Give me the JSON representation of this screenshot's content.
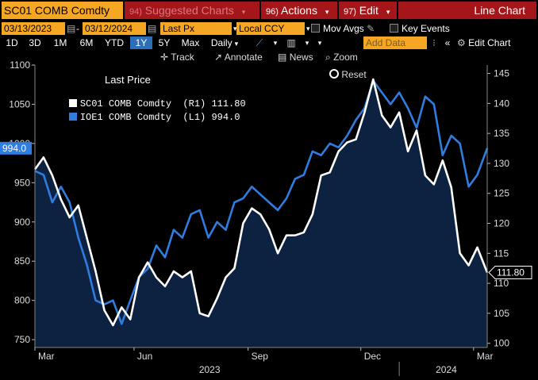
{
  "toolbar": {
    "ticker": "SC01 COMB Comdty",
    "suggested_num": "94)",
    "suggested_label": "Suggested Charts",
    "actions_num": "96)",
    "actions_label": "Actions",
    "edit_num": "97)",
    "edit_label": "Edit",
    "chart_type": "Line Chart",
    "start_date": "03/13/2023",
    "end_date": "03/12/2024",
    "price_field": "Last Px",
    "currency": "Local CCY",
    "mov_avgs": "Mov Avgs",
    "key_events": "Key Events",
    "add_data": "Add Data",
    "edit_chart": "Edit Chart",
    "timeframes": [
      "1D",
      "3D",
      "1M",
      "6M",
      "YTD",
      "1Y",
      "5Y",
      "Max"
    ],
    "selected_timeframe": "1Y",
    "frequency": "Daily",
    "track": "Track",
    "annotate": "Annotate",
    "news": "News",
    "zoom": "Zoom",
    "reset": "Reset"
  },
  "legend": {
    "title": "Last Price",
    "series": [
      {
        "text": "SC01 COMB Comdty  (R1) 111.80",
        "color": "#ffffff"
      },
      {
        "text": "IOE1 COMB Comdty  (L1) 994.0",
        "color": "#2f7de1"
      }
    ]
  },
  "chart_data": {
    "type": "line",
    "title": "",
    "y_left": {
      "range": [
        740,
        1100
      ],
      "ticks": [
        750,
        800,
        850,
        900,
        950,
        1000,
        1050,
        1100
      ],
      "current_label": "994.0"
    },
    "y_right": {
      "range": [
        99.3,
        146.4
      ],
      "ticks": [
        100,
        105,
        110,
        115,
        120,
        125,
        130,
        135,
        140,
        145
      ],
      "current_label": "111.80"
    },
    "x_range": [
      "2023-03-13",
      "2024-03-12"
    ],
    "x_ticks": [
      {
        "label": "Mar",
        "date": "2023-03-13"
      },
      {
        "label": "Jun",
        "date": "2023-06-01"
      },
      {
        "label": "Sep",
        "date": "2023-09-01"
      },
      {
        "label": "Dec",
        "date": "2023-12-01"
      },
      {
        "label": "Mar",
        "date": "2024-03-01"
      }
    ],
    "year_labels": [
      {
        "label": "2023",
        "date": "2023-08-01"
      },
      {
        "label": "2024",
        "date": "2024-02-08"
      }
    ],
    "year_divider": "2024-01-01",
    "series": [
      {
        "name": "SC01 COMB Comdty",
        "axis": "right",
        "color": "#ffffff",
        "points": [
          [
            "2023-03-13",
            129.0
          ],
          [
            "2023-03-20",
            131.0
          ],
          [
            "2023-03-27",
            128.0
          ],
          [
            "2023-04-03",
            124.0
          ],
          [
            "2023-04-10",
            121.0
          ],
          [
            "2023-04-17",
            123.0
          ],
          [
            "2023-04-24",
            117.5
          ],
          [
            "2023-05-01",
            112.0
          ],
          [
            "2023-05-08",
            105.5
          ],
          [
            "2023-05-15",
            103.0
          ],
          [
            "2023-05-22",
            106.0
          ],
          [
            "2023-05-29",
            104.0
          ],
          [
            "2023-06-05",
            111.0
          ],
          [
            "2023-06-12",
            113.5
          ],
          [
            "2023-06-19",
            111.0
          ],
          [
            "2023-06-26",
            109.5
          ],
          [
            "2023-07-03",
            112.0
          ],
          [
            "2023-07-10",
            111.0
          ],
          [
            "2023-07-17",
            112.0
          ],
          [
            "2023-07-24",
            105.0
          ],
          [
            "2023-07-31",
            104.5
          ],
          [
            "2023-08-07",
            107.5
          ],
          [
            "2023-08-14",
            111.0
          ],
          [
            "2023-08-21",
            112.5
          ],
          [
            "2023-08-28",
            120.0
          ],
          [
            "2023-09-04",
            122.5
          ],
          [
            "2023-09-11",
            121.5
          ],
          [
            "2023-09-18",
            119.0
          ],
          [
            "2023-09-25",
            115.0
          ],
          [
            "2023-10-02",
            118.0
          ],
          [
            "2023-10-09",
            118.0
          ],
          [
            "2023-10-16",
            118.5
          ],
          [
            "2023-10-23",
            121.5
          ],
          [
            "2023-10-30",
            128.0
          ],
          [
            "2023-11-06",
            128.5
          ],
          [
            "2023-11-13",
            132.0
          ],
          [
            "2023-11-20",
            133.5
          ],
          [
            "2023-11-27",
            134.0
          ],
          [
            "2023-12-04",
            138.5
          ],
          [
            "2023-12-11",
            144.0
          ],
          [
            "2023-12-18",
            138.0
          ],
          [
            "2023-12-25",
            136.0
          ],
          [
            "2024-01-01",
            138.5
          ],
          [
            "2024-01-08",
            132.0
          ],
          [
            "2024-01-15",
            135.5
          ],
          [
            "2024-01-22",
            128.0
          ],
          [
            "2024-01-29",
            126.5
          ],
          [
            "2024-02-05",
            130.5
          ],
          [
            "2024-02-12",
            126.0
          ],
          [
            "2024-02-19",
            115.0
          ],
          [
            "2024-02-26",
            113.0
          ],
          [
            "2024-03-04",
            116.0
          ],
          [
            "2024-03-12",
            111.8
          ]
        ]
      },
      {
        "name": "IOE1 COMB Comdty",
        "axis": "left",
        "color": "#2f7de1",
        "points": [
          [
            "2023-03-13",
            965
          ],
          [
            "2023-03-20",
            960
          ],
          [
            "2023-03-27",
            925
          ],
          [
            "2023-04-03",
            945
          ],
          [
            "2023-04-10",
            925
          ],
          [
            "2023-04-17",
            880
          ],
          [
            "2023-04-24",
            845
          ],
          [
            "2023-05-01",
            800
          ],
          [
            "2023-05-08",
            795
          ],
          [
            "2023-05-15",
            800
          ],
          [
            "2023-05-22",
            770
          ],
          [
            "2023-05-29",
            800
          ],
          [
            "2023-06-05",
            830
          ],
          [
            "2023-06-12",
            840
          ],
          [
            "2023-06-19",
            870
          ],
          [
            "2023-06-26",
            855
          ],
          [
            "2023-07-03",
            890
          ],
          [
            "2023-07-10",
            880
          ],
          [
            "2023-07-17",
            910
          ],
          [
            "2023-07-24",
            915
          ],
          [
            "2023-07-31",
            880
          ],
          [
            "2023-08-07",
            900
          ],
          [
            "2023-08-14",
            890
          ],
          [
            "2023-08-21",
            925
          ],
          [
            "2023-08-28",
            930
          ],
          [
            "2023-09-04",
            945
          ],
          [
            "2023-09-11",
            935
          ],
          [
            "2023-09-18",
            925
          ],
          [
            "2023-09-25",
            915
          ],
          [
            "2023-10-02",
            930
          ],
          [
            "2023-10-09",
            955
          ],
          [
            "2023-10-16",
            960
          ],
          [
            "2023-10-23",
            990
          ],
          [
            "2023-10-30",
            985
          ],
          [
            "2023-11-06",
            1000
          ],
          [
            "2023-11-13",
            995
          ],
          [
            "2023-11-20",
            1010
          ],
          [
            "2023-11-27",
            1030
          ],
          [
            "2023-12-04",
            1045
          ],
          [
            "2023-12-11",
            1080
          ],
          [
            "2023-12-18",
            1065
          ],
          [
            "2023-12-25",
            1050
          ],
          [
            "2024-01-01",
            1065
          ],
          [
            "2024-01-08",
            1045
          ],
          [
            "2024-01-15",
            1020
          ],
          [
            "2024-01-22",
            1060
          ],
          [
            "2024-01-29",
            1050
          ],
          [
            "2024-02-05",
            985
          ],
          [
            "2024-02-12",
            1010
          ],
          [
            "2024-02-19",
            1000
          ],
          [
            "2024-02-26",
            945
          ],
          [
            "2024-03-04",
            960
          ],
          [
            "2024-03-12",
            994
          ]
        ]
      }
    ]
  }
}
